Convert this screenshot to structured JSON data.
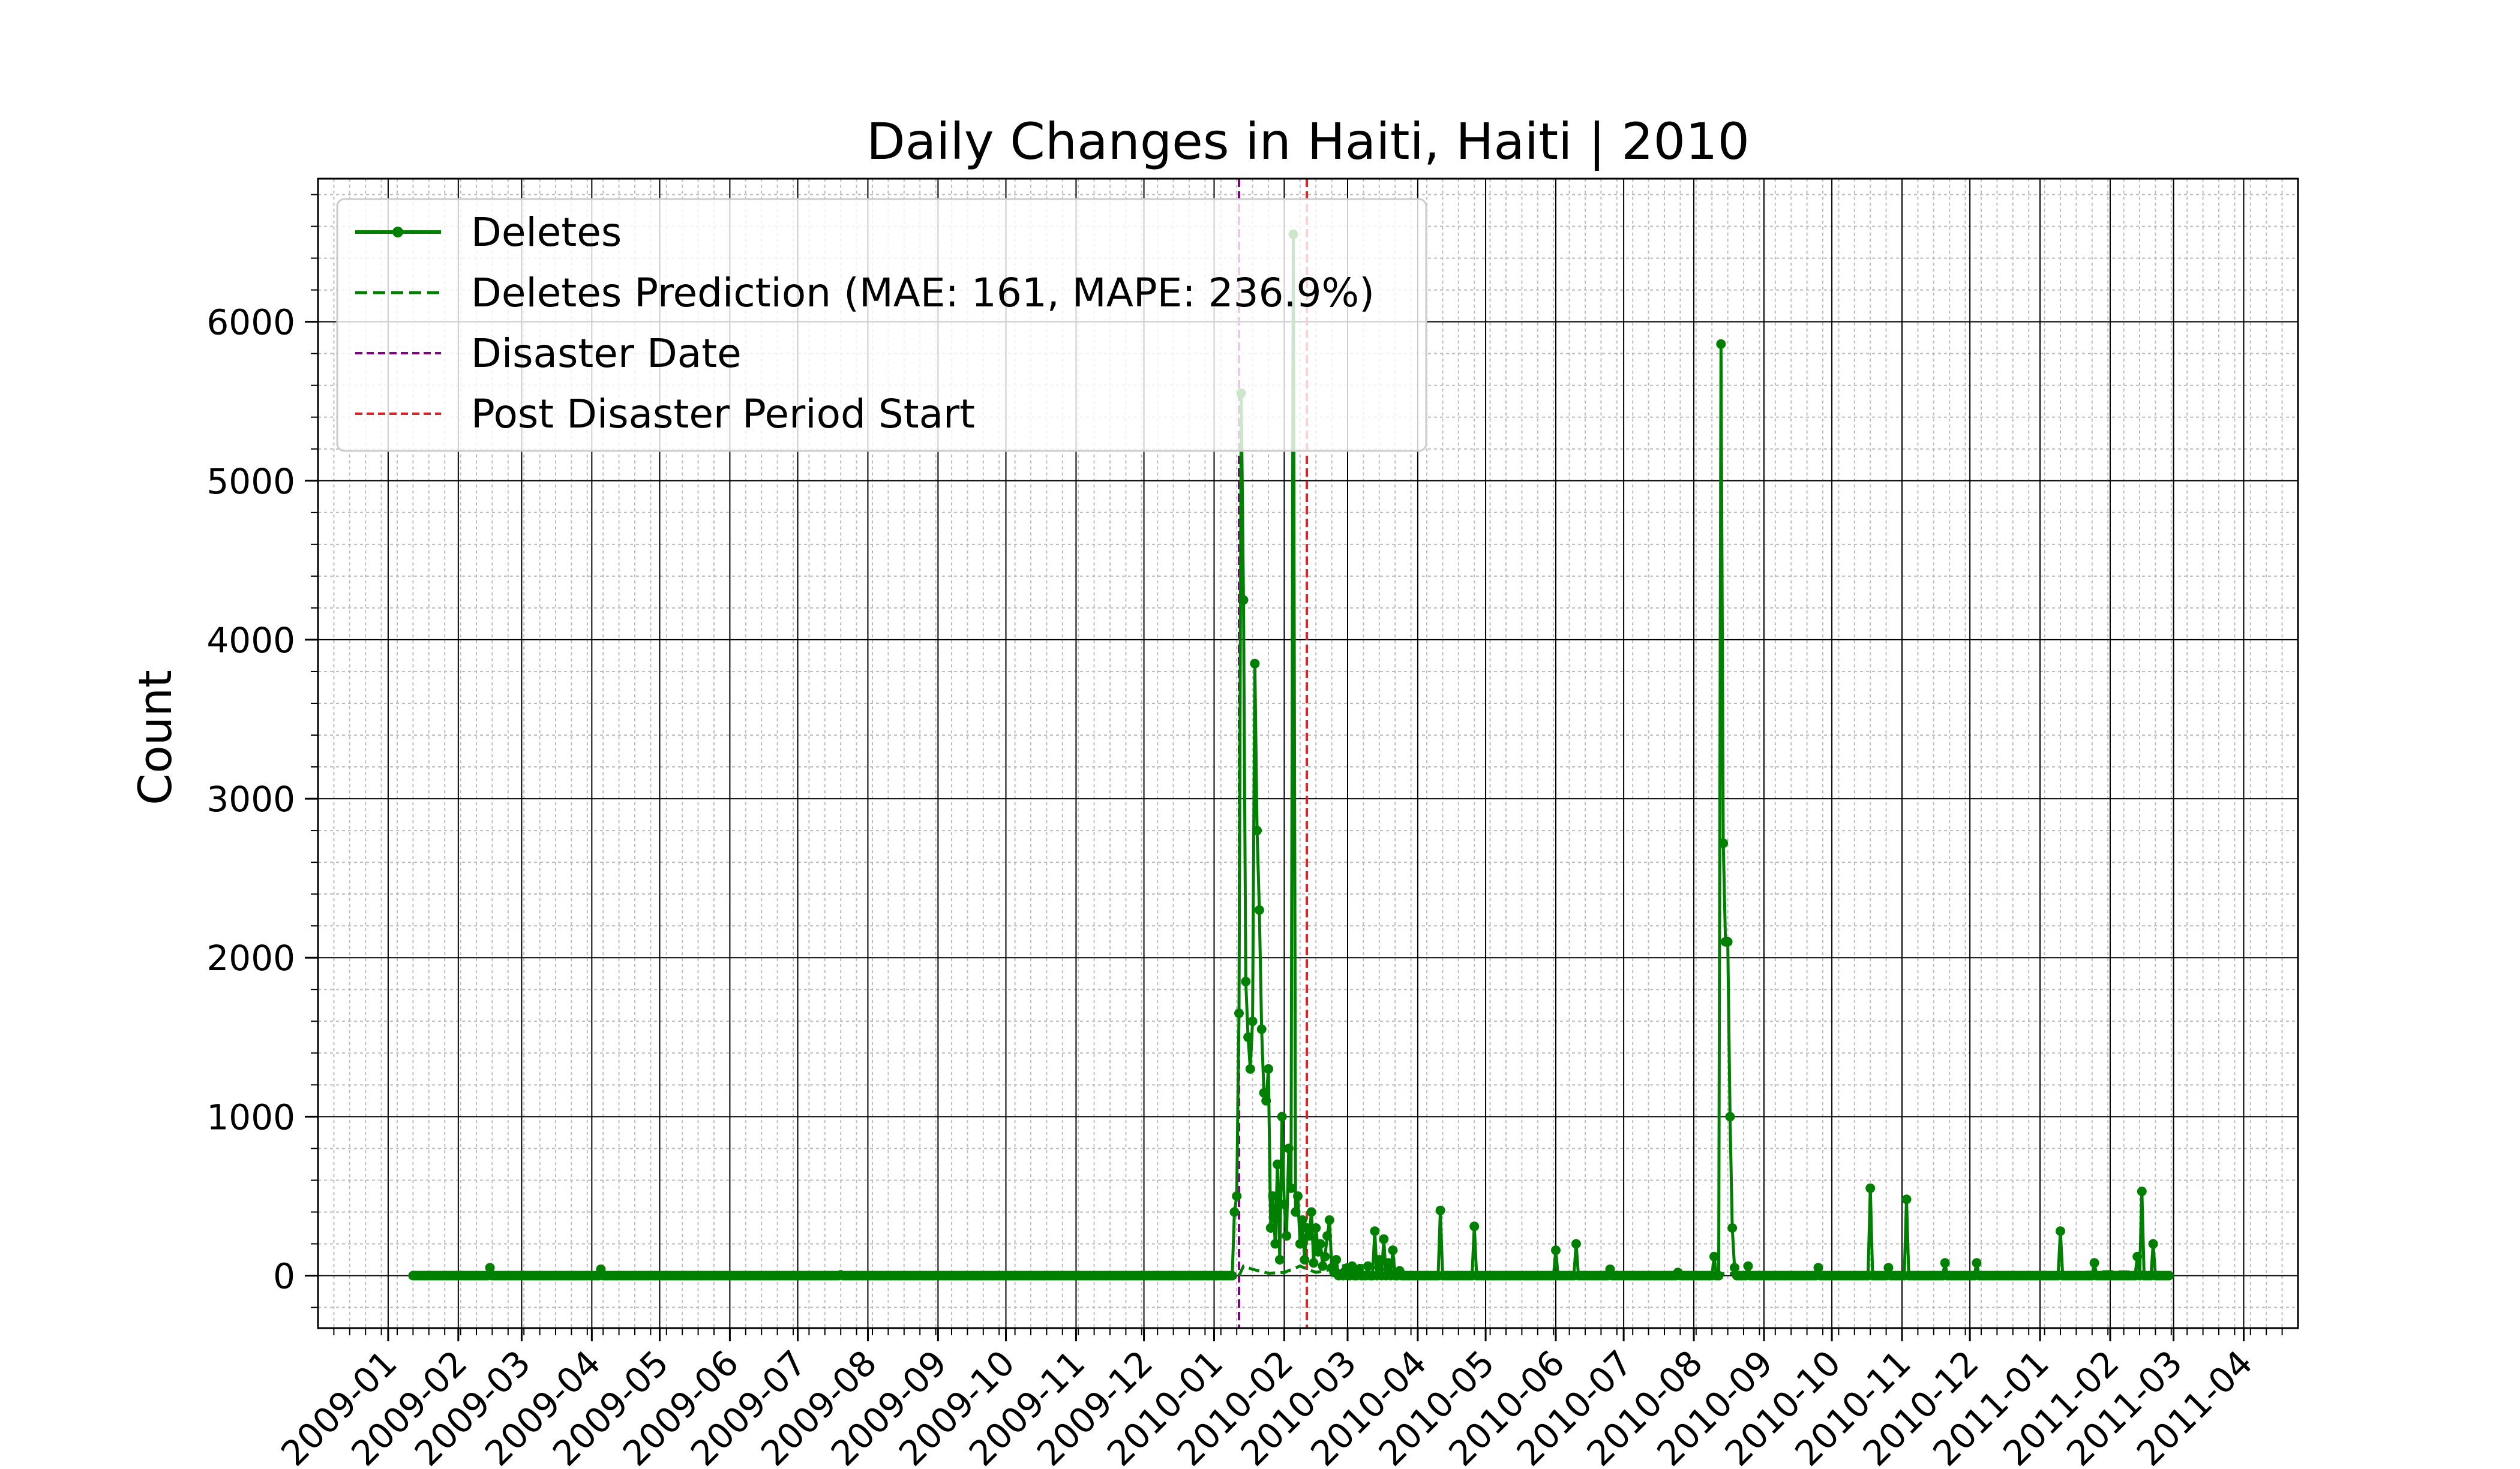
{
  "chart_data": {
    "type": "line",
    "title": "Daily Changes in Haiti, Haiti | 2010",
    "xlabel": "",
    "ylabel": "Count",
    "x_axis": "date",
    "xlim": [
      "2008-12-01",
      "2011-04-25"
    ],
    "ylim": [
      -330,
      6900
    ],
    "yticks": [
      0,
      1000,
      2000,
      3000,
      4000,
      5000,
      6000
    ],
    "xticks": [
      "2009-01",
      "2009-02",
      "2009-03",
      "2009-04",
      "2009-05",
      "2009-06",
      "2009-07",
      "2009-08",
      "2009-09",
      "2009-10",
      "2009-11",
      "2009-12",
      "2010-01",
      "2010-02",
      "2010-03",
      "2010-04",
      "2010-05",
      "2010-06",
      "2010-07",
      "2010-08",
      "2010-09",
      "2010-10",
      "2010-11",
      "2010-12",
      "2011-01",
      "2011-02",
      "2011-03",
      "2011-04"
    ],
    "grid": true,
    "legend_position": "upper-left",
    "series": [
      {
        "name": "Deletes",
        "color": "#008000",
        "style": "solid-with-markers",
        "baseline": {
          "start": "2009-01-12",
          "end": "2011-02-27",
          "value": 0
        },
        "points": [
          [
            "2009-02-15",
            50
          ],
          [
            "2009-04-05",
            40
          ],
          [
            "2009-07-20",
            5
          ],
          [
            "2010-01-09",
            0
          ],
          [
            "2010-01-10",
            400
          ],
          [
            "2010-01-11",
            500
          ],
          [
            "2010-01-12",
            1650
          ],
          [
            "2010-01-13",
            5550
          ],
          [
            "2010-01-14",
            4250
          ],
          [
            "2010-01-15",
            1850
          ],
          [
            "2010-01-16",
            1500
          ],
          [
            "2010-01-17",
            1300
          ],
          [
            "2010-01-18",
            1600
          ],
          [
            "2010-01-19",
            3850
          ],
          [
            "2010-01-20",
            2800
          ],
          [
            "2010-01-21",
            2300
          ],
          [
            "2010-01-22",
            1550
          ],
          [
            "2010-01-23",
            1150
          ],
          [
            "2010-01-24",
            1100
          ],
          [
            "2010-01-25",
            1300
          ],
          [
            "2010-01-26",
            300
          ],
          [
            "2010-01-27",
            500
          ],
          [
            "2010-01-28",
            200
          ],
          [
            "2010-01-29",
            700
          ],
          [
            "2010-01-30",
            100
          ],
          [
            "2010-01-31",
            1000
          ],
          [
            "2010-02-01",
            450
          ],
          [
            "2010-02-02",
            250
          ],
          [
            "2010-02-03",
            800
          ],
          [
            "2010-02-04",
            550
          ],
          [
            "2010-02-05",
            6550
          ],
          [
            "2010-02-06",
            400
          ],
          [
            "2010-02-07",
            500
          ],
          [
            "2010-02-08",
            200
          ],
          [
            "2010-02-09",
            350
          ],
          [
            "2010-02-10",
            100
          ],
          [
            "2010-02-11",
            300
          ],
          [
            "2010-02-12",
            250
          ],
          [
            "2010-02-13",
            400
          ],
          [
            "2010-02-14",
            80
          ],
          [
            "2010-02-15",
            300
          ],
          [
            "2010-02-16",
            150
          ],
          [
            "2010-02-17",
            200
          ],
          [
            "2010-02-18",
            60
          ],
          [
            "2010-02-19",
            120
          ],
          [
            "2010-02-20",
            250
          ],
          [
            "2010-02-21",
            350
          ],
          [
            "2010-02-22",
            50
          ],
          [
            "2010-02-23",
            20
          ],
          [
            "2010-02-24",
            100
          ],
          [
            "2010-02-26",
            10
          ],
          [
            "2010-02-28",
            30
          ],
          [
            "2010-03-03",
            60
          ],
          [
            "2010-03-06",
            40
          ],
          [
            "2010-03-10",
            60
          ],
          [
            "2010-03-13",
            280
          ],
          [
            "2010-03-15",
            100
          ],
          [
            "2010-03-17",
            230
          ],
          [
            "2010-03-19",
            80
          ],
          [
            "2010-03-21",
            160
          ],
          [
            "2010-03-24",
            30
          ],
          [
            "2010-04-11",
            410
          ],
          [
            "2010-04-26",
            310
          ],
          [
            "2010-06-01",
            160
          ],
          [
            "2010-06-10",
            200
          ],
          [
            "2010-06-25",
            40
          ],
          [
            "2010-07-25",
            20
          ],
          [
            "2010-08-10",
            120
          ],
          [
            "2010-08-13",
            5860
          ],
          [
            "2010-08-14",
            2720
          ],
          [
            "2010-08-15",
            2100
          ],
          [
            "2010-08-16",
            2100
          ],
          [
            "2010-08-17",
            1000
          ],
          [
            "2010-08-18",
            300
          ],
          [
            "2010-08-19",
            50
          ],
          [
            "2010-08-25",
            60
          ],
          [
            "2010-09-25",
            50
          ],
          [
            "2010-10-18",
            550
          ],
          [
            "2010-10-26",
            50
          ],
          [
            "2010-11-03",
            480
          ],
          [
            "2010-11-20",
            80
          ],
          [
            "2010-12-04",
            80
          ],
          [
            "2011-01-10",
            280
          ],
          [
            "2011-01-25",
            80
          ],
          [
            "2011-02-13",
            120
          ],
          [
            "2011-02-15",
            530
          ],
          [
            "2011-02-20",
            200
          ]
        ]
      },
      {
        "name": "Deletes Prediction (MAE: 161, MAPE: 236.9%)",
        "color": "#008000",
        "style": "dashed",
        "points": [
          [
            "2010-01-12",
            0
          ],
          [
            "2010-01-14",
            60
          ],
          [
            "2010-01-18",
            40
          ],
          [
            "2010-01-25",
            15
          ],
          [
            "2010-02-01",
            20
          ],
          [
            "2010-02-08",
            60
          ],
          [
            "2010-02-15",
            20
          ],
          [
            "2010-02-22",
            40
          ],
          [
            "2010-03-01",
            70
          ],
          [
            "2010-03-10",
            60
          ],
          [
            "2010-03-20",
            30
          ],
          [
            "2010-04-01",
            10
          ],
          [
            "2010-05-01",
            5
          ],
          [
            "2010-06-01",
            10
          ],
          [
            "2010-07-01",
            8
          ],
          [
            "2010-08-01",
            10
          ],
          [
            "2010-08-20",
            15
          ],
          [
            "2010-09-15",
            15
          ],
          [
            "2010-10-15",
            12
          ],
          [
            "2010-11-15",
            10
          ],
          [
            "2010-12-15",
            12
          ],
          [
            "2011-01-15",
            20
          ],
          [
            "2011-02-01",
            25
          ],
          [
            "2011-02-27",
            20
          ]
        ]
      }
    ],
    "vlines": [
      {
        "name": "Disaster Date",
        "date": "2010-01-12",
        "color": "#800080"
      },
      {
        "name": "Post Disaster Period Start",
        "date": "2010-02-11",
        "color": "#d62728"
      }
    ]
  }
}
